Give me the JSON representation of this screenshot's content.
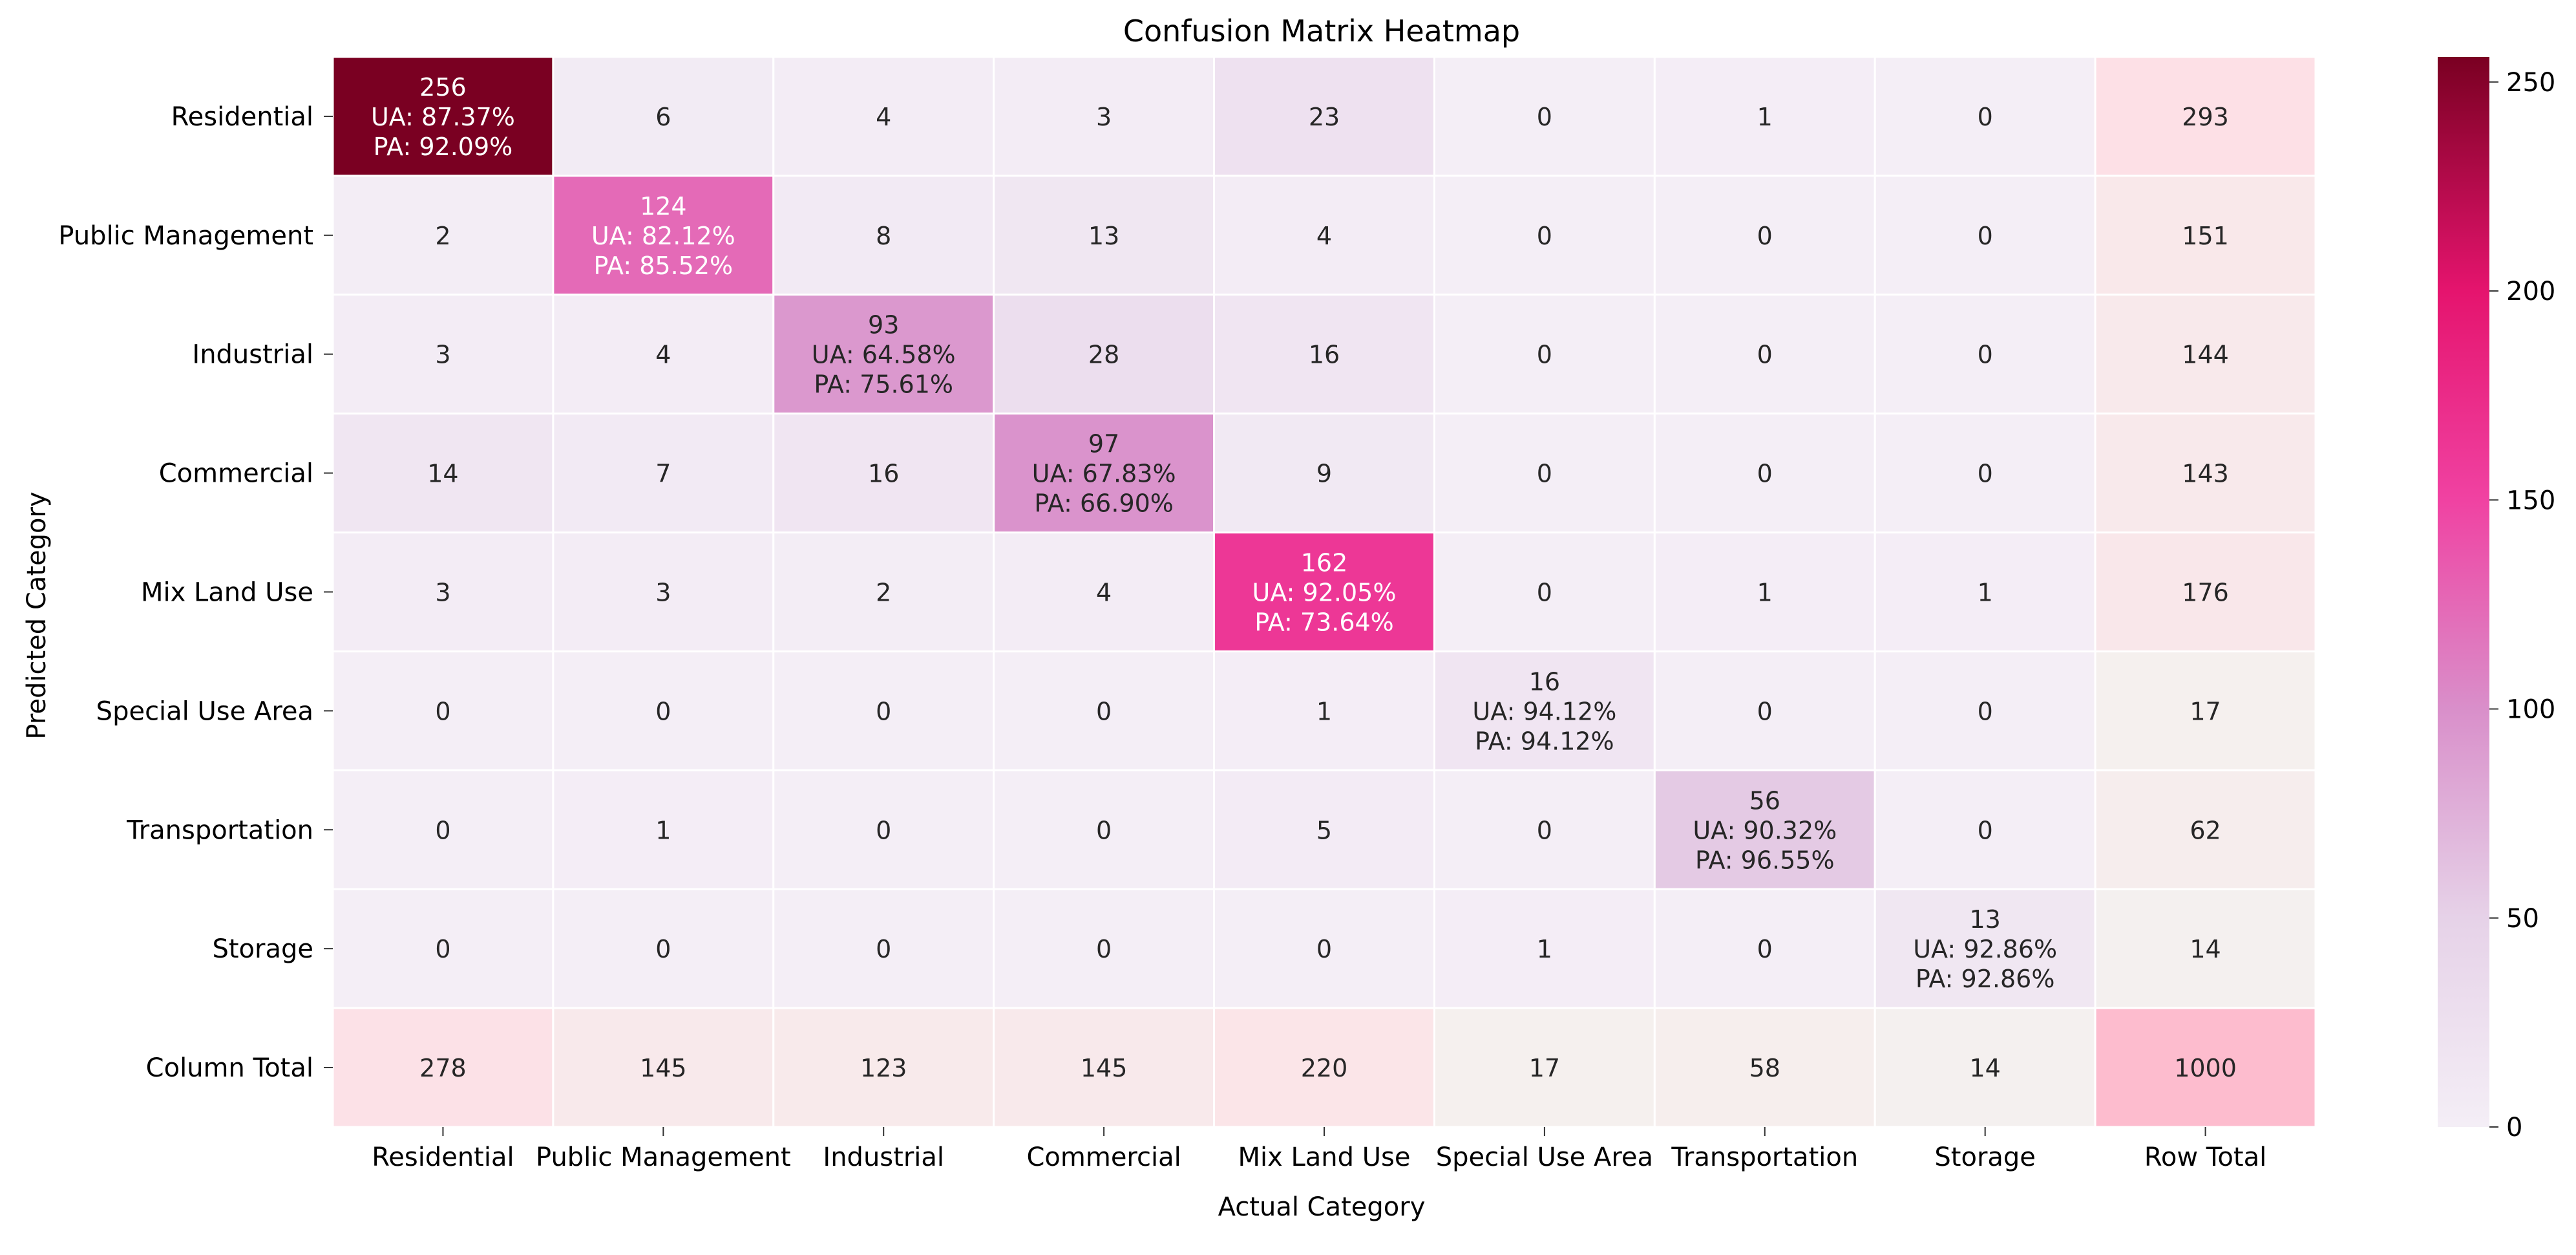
{
  "chart_data": {
    "type": "heatmap",
    "title": "Confusion Matrix Heatmap",
    "xlabel": "Actual Category",
    "ylabel": "Predicted Category",
    "x_categories": [
      "Residential",
      "Public Management",
      "Industrial",
      "Commercial",
      "Mix Land Use",
      "Special Use Area",
      "Transportation",
      "Storage",
      "Row Total"
    ],
    "y_categories": [
      "Residential",
      "Public Management",
      "Industrial",
      "Commercial",
      "Mix Land Use",
      "Special Use Area",
      "Transportation",
      "Storage",
      "Column Total"
    ],
    "values": [
      [
        256,
        6,
        4,
        3,
        23,
        0,
        1,
        0,
        293
      ],
      [
        2,
        124,
        8,
        13,
        4,
        0,
        0,
        0,
        151
      ],
      [
        3,
        4,
        93,
        28,
        16,
        0,
        0,
        0,
        144
      ],
      [
        14,
        7,
        16,
        97,
        9,
        0,
        0,
        0,
        143
      ],
      [
        3,
        3,
        2,
        4,
        162,
        0,
        1,
        1,
        176
      ],
      [
        0,
        0,
        0,
        0,
        1,
        16,
        0,
        0,
        17
      ],
      [
        0,
        1,
        0,
        0,
        5,
        0,
        56,
        0,
        62
      ],
      [
        0,
        0,
        0,
        0,
        0,
        1,
        0,
        13,
        14
      ],
      [
        278,
        145,
        123,
        145,
        220,
        17,
        58,
        14,
        1000
      ]
    ],
    "diagonal_annotations": [
      {
        "ua": "UA: 87.37%",
        "pa": "PA: 92.09%"
      },
      {
        "ua": "UA: 82.12%",
        "pa": "PA: 85.52%"
      },
      {
        "ua": "UA: 64.58%",
        "pa": "PA: 75.61%"
      },
      {
        "ua": "UA: 67.83%",
        "pa": "PA: 66.90%"
      },
      {
        "ua": "UA: 92.05%",
        "pa": "PA: 73.64%"
      },
      {
        "ua": "UA: 94.12%",
        "pa": "PA: 94.12%"
      },
      {
        "ua": "UA: 90.32%",
        "pa": "PA: 96.55%"
      },
      {
        "ua": "UA: 92.86%",
        "pa": "PA: 92.86%"
      }
    ],
    "colorbar": {
      "range": [
        0,
        256
      ],
      "ticks": [
        0,
        50,
        100,
        150,
        200,
        250
      ],
      "colormap_stops": [
        {
          "value": 0,
          "color": "#f4eef6"
        },
        {
          "value": 50,
          "color": "#e6d2e8"
        },
        {
          "value": 100,
          "color": "#d98fca"
        },
        {
          "value": 150,
          "color": "#f042a2"
        },
        {
          "value": 200,
          "color": "#e5146e"
        },
        {
          "value": 256,
          "color": "#7a0022"
        }
      ]
    },
    "totals_colormap_stops": [
      {
        "value": 0,
        "color": "#f4f1ef"
      },
      {
        "value": 300,
        "color": "#fde0e6"
      },
      {
        "value": 1000,
        "color": "#fdbcce"
      }
    ]
  }
}
